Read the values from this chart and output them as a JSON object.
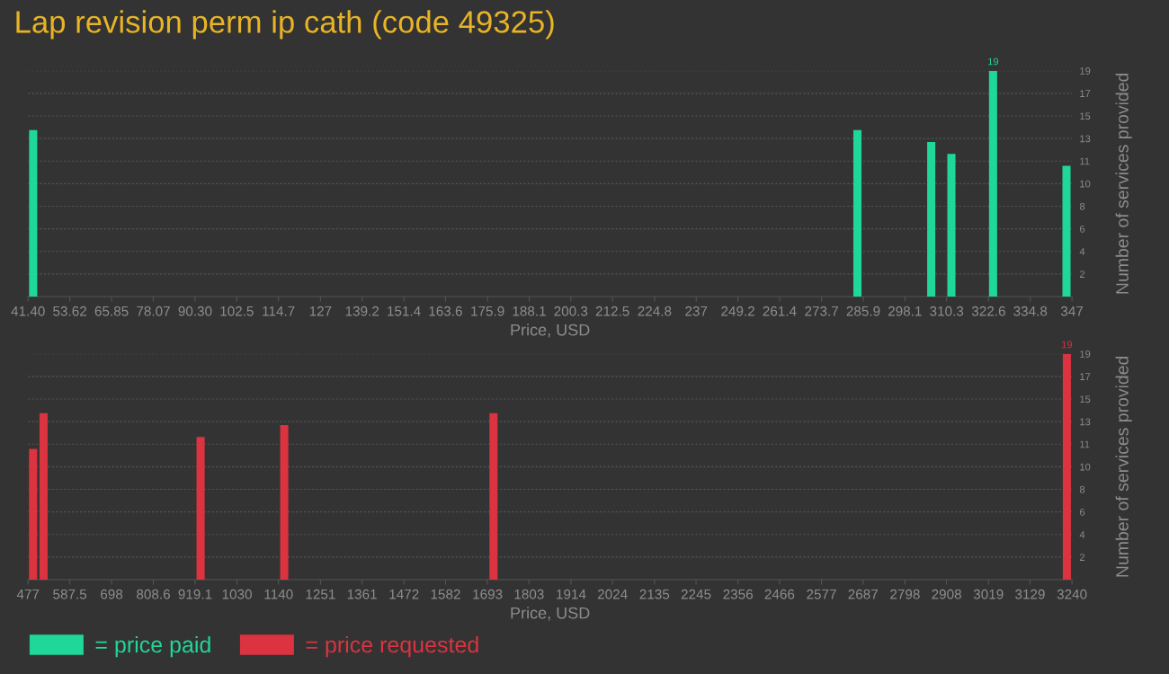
{
  "chart_data": [
    {
      "type": "bar",
      "title": "Lap revision perm ip cath (code 49325)",
      "xlabel": "Price, USD",
      "ylabel": "Number of services provided",
      "x": [
        42.9,
        284.2,
        305.8,
        311.7,
        323.9,
        345.4
      ],
      "series": [
        {
          "name": "= price paid",
          "color": "#20d79a",
          "values": [
            14,
            14,
            13,
            12,
            19,
            11
          ],
          "value_labels": [
            null,
            null,
            null,
            null,
            "19",
            null
          ]
        }
      ],
      "xlim": [
        41.4,
        347
      ],
      "xticks": [
        {
          "value": 41.4,
          "label": "41.40"
        },
        53.62,
        65.85,
        78.07,
        {
          "value": 90.3,
          "label": "90.30"
        },
        102.5,
        114.7,
        127,
        139.2,
        151.4,
        163.6,
        175.9,
        188.1,
        200.3,
        212.5,
        224.8,
        237,
        249.2,
        261.4,
        273.7,
        285.9,
        298.1,
        310.3,
        322.6,
        334.8,
        347
      ],
      "ylim": [
        0,
        19
      ],
      "yticks": [
        {
          "value": 1.9,
          "label": "2"
        },
        {
          "value": 3.8,
          "label": "4"
        },
        {
          "value": 5.7,
          "label": "6"
        },
        {
          "value": 7.6,
          "label": "8"
        },
        {
          "value": 9.5,
          "label": "10"
        },
        {
          "value": 11.4,
          "label": "11"
        },
        {
          "value": 13.3,
          "label": "13"
        },
        {
          "value": 15.2,
          "label": "15"
        },
        {
          "value": 17.1,
          "label": "17"
        },
        19
      ],
      "grid": "y",
      "legend": "bottom left"
    },
    {
      "type": "bar",
      "xlabel": "Price, USD",
      "ylabel": "Number of services provided",
      "x": [
        490.3,
        518,
        933.7,
        1155,
        1709,
        3226.5
      ],
      "series": [
        {
          "name": "= price requested",
          "color": "#dc3340",
          "values": [
            11,
            14,
            12,
            13,
            14,
            19
          ],
          "value_labels": [
            null,
            null,
            null,
            null,
            null,
            "19"
          ]
        }
      ],
      "xlim": [
        477,
        3240
      ],
      "xticks": [
        477,
        587.5,
        698,
        808.6,
        919.1,
        1030,
        1140,
        1251,
        1361,
        1472,
        1582,
        1693,
        1803,
        1914,
        2024,
        2135,
        2245,
        2356,
        2466,
        2577,
        2687,
        2798,
        2908,
        3019,
        3129,
        3240
      ],
      "ylim": [
        0,
        19
      ],
      "yticks": [
        {
          "value": 1.9,
          "label": "2"
        },
        {
          "value": 3.8,
          "label": "4"
        },
        {
          "value": 5.7,
          "label": "6"
        },
        {
          "value": 7.6,
          "label": "8"
        },
        {
          "value": 9.5,
          "label": "10"
        },
        {
          "value": 11.4,
          "label": "11"
        },
        {
          "value": 13.3,
          "label": "13"
        },
        {
          "value": 15.2,
          "label": "15"
        },
        {
          "value": 17.1,
          "label": "17"
        },
        19
      ],
      "grid": "y",
      "legend": "bottom left"
    }
  ]
}
